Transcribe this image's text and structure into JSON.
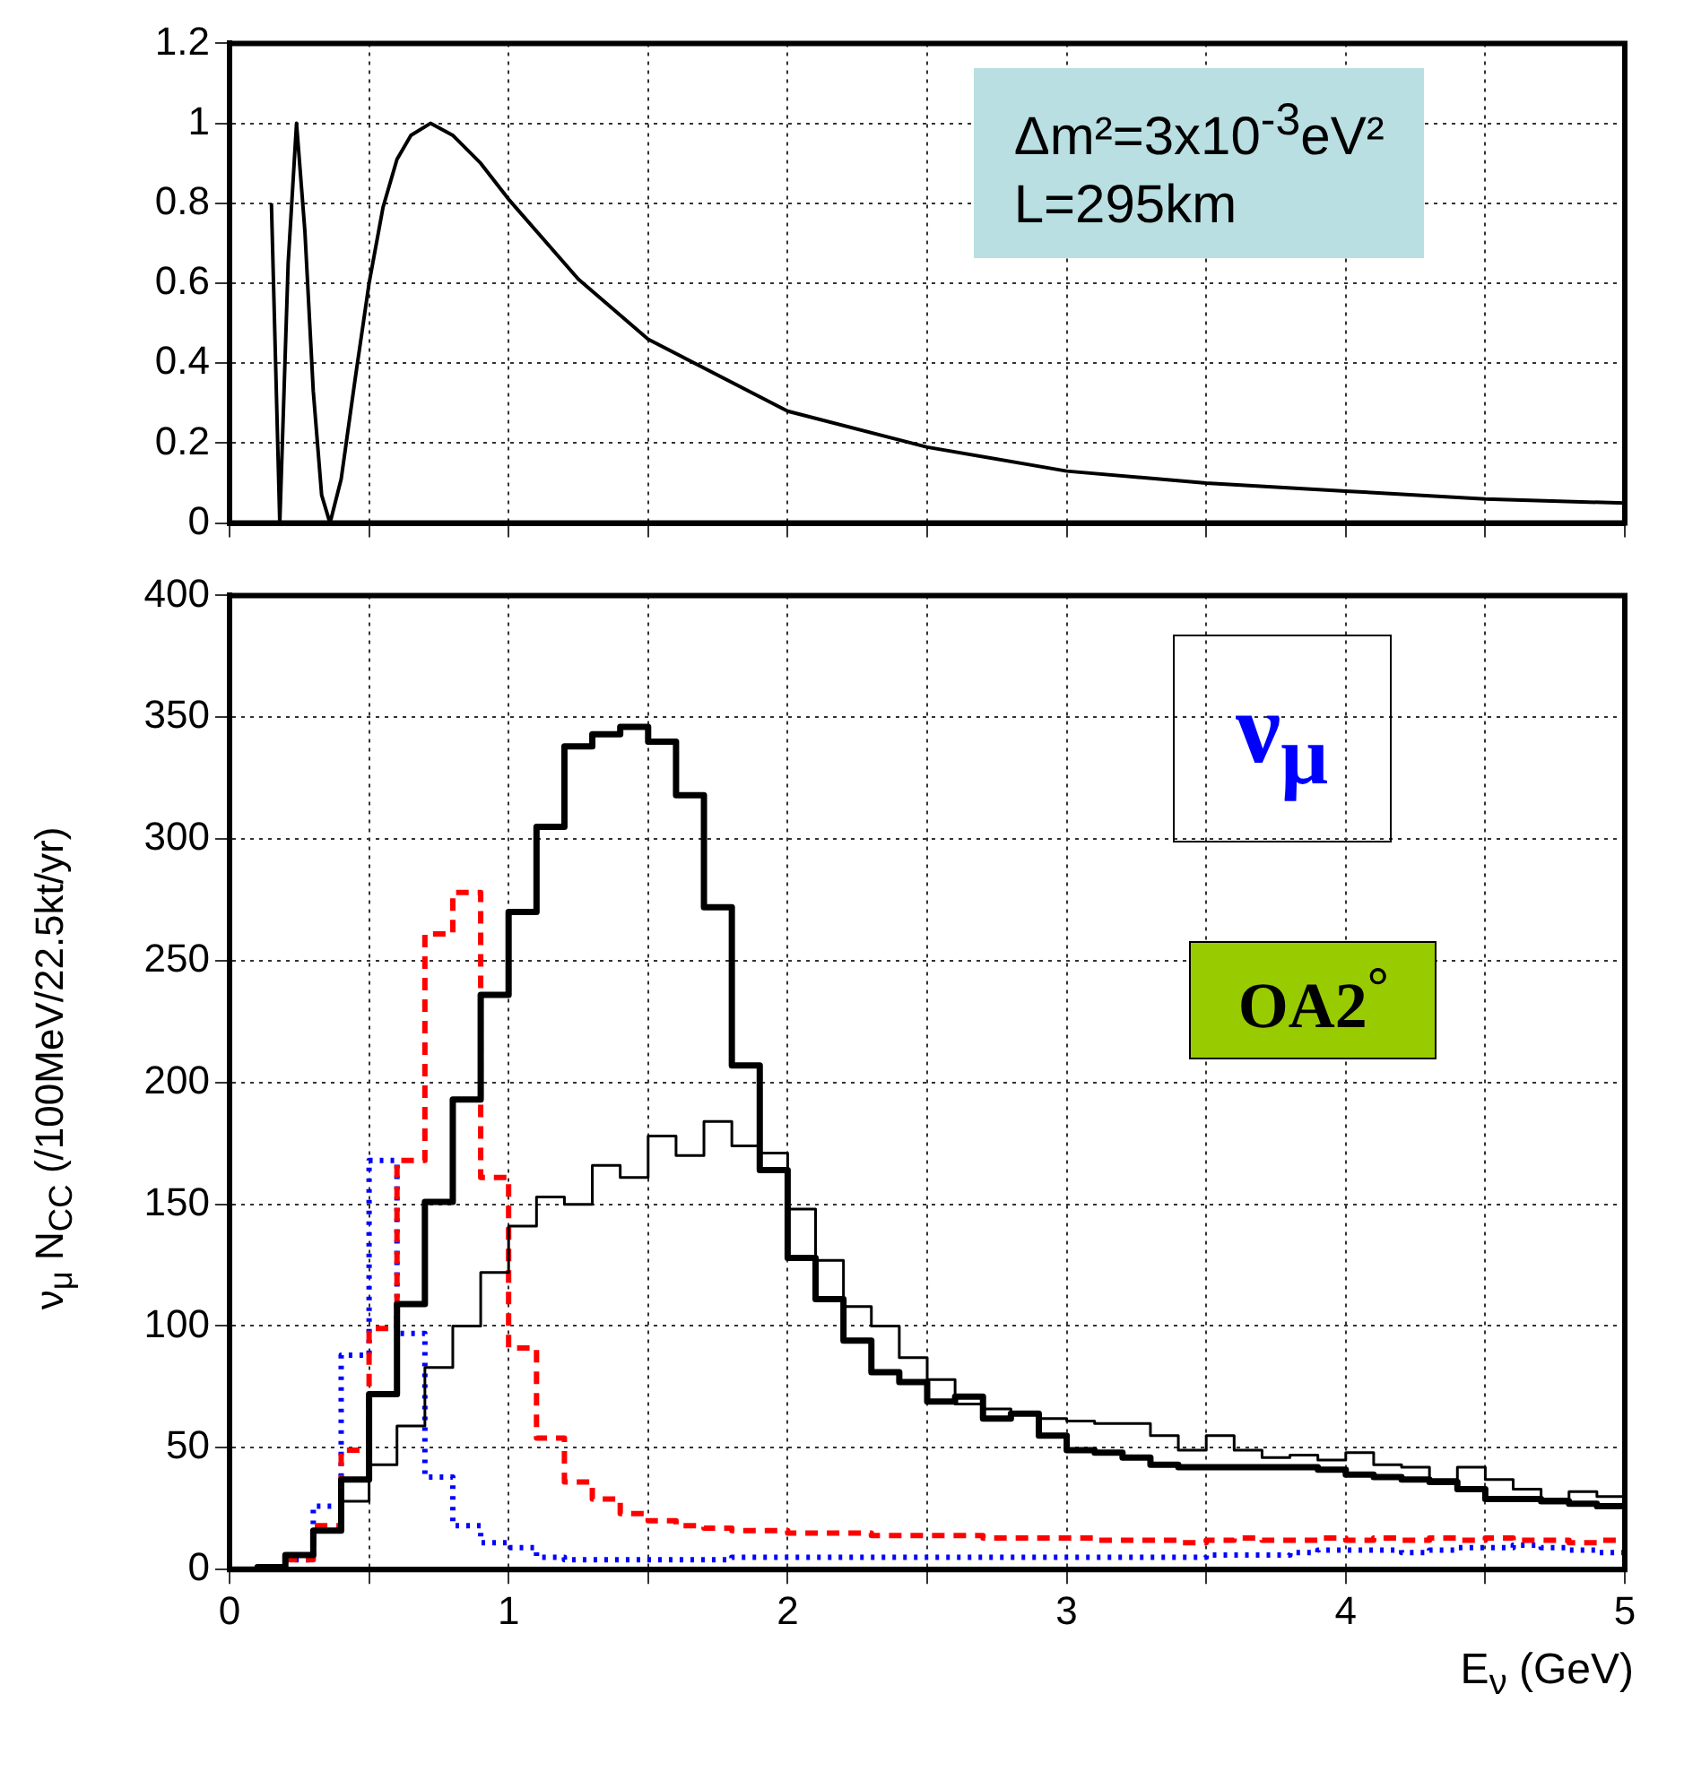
{
  "chart_data": [
    {
      "type": "line",
      "x": [
        0.15,
        0.18,
        0.21,
        0.24,
        0.27,
        0.3,
        0.33,
        0.36,
        0.4,
        0.45,
        0.5,
        0.55,
        0.6,
        0.65,
        0.72,
        0.8,
        0.9,
        1.0,
        1.25,
        1.5,
        2.0,
        2.5,
        3.0,
        3.5,
        4.0,
        4.5,
        5.0
      ],
      "values": [
        0.8,
        0,
        0.65,
        1.0,
        0.73,
        0.33,
        0.07,
        0,
        0.11,
        0.36,
        0.6,
        0.79,
        0.91,
        0.97,
        1.0,
        0.97,
        0.9,
        0.81,
        0.61,
        0.46,
        0.28,
        0.19,
        0.13,
        0.1,
        0.08,
        0.06,
        0.05
      ],
      "color": "#000000",
      "xlim": [
        0,
        5
      ],
      "xticks": [
        0,
        {
          "value": 0.5,
          "label": null
        },
        1,
        {
          "value": 1.5,
          "label": null
        },
        2,
        {
          "value": 2.5,
          "label": null
        },
        3,
        {
          "value": 3.5,
          "label": null
        },
        4,
        {
          "value": 4.5,
          "label": null
        },
        5
      ],
      "ylim": [
        0,
        1.2
      ],
      "yticks": [
        0,
        0.2,
        0.4,
        0.6,
        0.8,
        1,
        1.2
      ],
      "grid": true,
      "tick_labels": "y",
      "annotations": [
        "Δm²=3x10$^{-3}$eV²",
        "L=295km"
      ]
    },
    {
      "type": "histogram",
      "bins": [
        0,
        0.1,
        0.2,
        0.3,
        0.4,
        0.5,
        0.6,
        0.7,
        0.8,
        0.9,
        1,
        1.1,
        1.2,
        1.3,
        1.4,
        1.5,
        1.6,
        1.7,
        1.8,
        1.9,
        2,
        2.1,
        2.2,
        2.3,
        2.4,
        2.5,
        2.6,
        2.7,
        2.8,
        2.9,
        3,
        3.1,
        3.2,
        3.3,
        3.4,
        3.5,
        3.6,
        3.7,
        3.8,
        3.9,
        4,
        4.1,
        4.2,
        4.3,
        4.4,
        4.5,
        4.6,
        4.7,
        4.8,
        4.9,
        5
      ],
      "series": [
        {
          "color": "#000000",
          "line_style": "solid",
          "values": [
            0,
            1,
            6,
            16,
            37,
            72,
            109,
            151,
            193,
            236,
            270,
            305,
            338,
            343,
            346,
            340,
            318,
            272,
            207,
            164,
            128,
            111,
            94,
            81,
            77,
            69,
            71,
            62,
            64,
            55,
            49,
            48,
            46,
            43,
            42,
            42,
            42,
            42,
            42,
            41,
            39,
            38,
            37,
            36,
            33,
            29,
            29,
            28,
            27,
            26
          ]
        },
        {
          "color": "#000000",
          "line_style": "solid",
          "values": [
            0,
            1,
            6,
            16,
            28,
            43,
            59,
            83,
            100,
            122,
            141,
            153,
            150,
            166,
            161,
            178,
            170,
            184,
            174,
            171,
            148,
            127,
            108,
            100,
            87,
            78,
            68,
            66,
            64,
            62,
            61,
            60,
            60,
            55,
            49,
            55,
            49,
            46,
            47,
            45,
            48,
            43,
            42,
            37,
            42,
            37,
            33,
            29,
            32,
            30
          ]
        },
        {
          "color": "#ff0000",
          "line_style": "dashed",
          "values": [
            0,
            0,
            4,
            18,
            49,
            99,
            168,
            261,
            278,
            161,
            91,
            54,
            36,
            29,
            23,
            20,
            18,
            17,
            16,
            16,
            15,
            15,
            15,
            14,
            14,
            14,
            14,
            13,
            13,
            13,
            13,
            12,
            12,
            12,
            11,
            12,
            13,
            12,
            12,
            13,
            12,
            13,
            12,
            13,
            12,
            13,
            12,
            12,
            11,
            12
          ]
        },
        {
          "color": "#0000ff",
          "line_style": "dotted",
          "values": [
            0,
            0,
            4,
            26,
            88,
            168,
            97,
            38,
            18,
            11,
            9,
            5,
            4,
            4,
            4,
            4,
            4,
            4,
            5,
            5,
            5,
            5,
            5,
            5,
            5,
            5,
            5,
            5,
            5,
            5,
            5,
            5,
            5,
            5,
            5,
            6,
            6,
            6,
            7,
            8,
            8,
            8,
            7,
            8,
            9,
            9,
            10,
            9,
            8,
            7
          ]
        }
      ],
      "xlabel": "E$_{ν}$ (GeV)",
      "ylabel": "ν$_{μ}$ N$_{CC}$ (/100MeV/22.5kt/yr)",
      "xlim": [
        0,
        5
      ],
      "xticks": [
        0,
        {
          "value": 0.5,
          "label": null
        },
        1,
        {
          "value": 1.5,
          "label": null
        },
        2,
        {
          "value": 2.5,
          "label": null
        },
        3,
        {
          "value": 3.5,
          "label": null
        },
        4,
        {
          "value": 4.5,
          "label": null
        },
        5
      ],
      "ylim": [
        0,
        400
      ],
      "yticks": [
        0,
        50,
        100,
        150,
        200,
        250,
        300,
        350,
        400
      ],
      "grid": true,
      "annotations": [
        "ν$_{μ}$",
        "OA2$^{°}$"
      ]
    }
  ]
}
